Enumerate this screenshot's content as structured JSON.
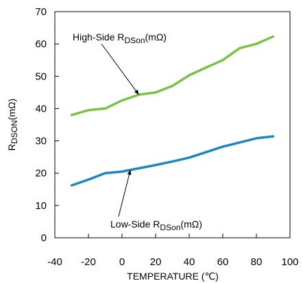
{
  "chart_data": {
    "type": "line",
    "xlabel": "TEMPERATURE (℃)",
    "ylabel": "RDSON(mΩ)",
    "xlim": [
      -40,
      100
    ],
    "ylim": [
      0,
      70
    ],
    "x_ticks": [
      "-40",
      "-20",
      "0",
      "20",
      "40",
      "60",
      "80",
      "100"
    ],
    "y_ticks": [
      "0",
      "10",
      "20",
      "30",
      "40",
      "50",
      "60",
      "70"
    ],
    "grid": false,
    "series": [
      {
        "name": "High-Side RDSon(mΩ)",
        "color": "#7cc242",
        "x": [
          -30,
          -20,
          -10,
          0,
          10,
          20,
          30,
          40,
          50,
          60,
          70,
          80,
          90
        ],
        "y": [
          38,
          39.5,
          40,
          42.5,
          44.3,
          45,
          47,
          50.3,
          52.7,
          55,
          58.7,
          60,
          62.3
        ]
      },
      {
        "name": "Low-Side RDSon(mΩ)",
        "color": "#1a88c0",
        "x": [
          -30,
          -20,
          -10,
          0,
          10,
          20,
          30,
          40,
          50,
          60,
          70,
          80,
          90
        ],
        "y": [
          16.2,
          18,
          20,
          20.5,
          21.5,
          22.5,
          23.6,
          24.8,
          26.5,
          28.2,
          29.5,
          30.8,
          31.4
        ]
      }
    ],
    "annotations": [
      {
        "series": 0,
        "label_main": "High-Side R",
        "label_sub": "DSon",
        "label_unit": "(mΩ)",
        "points_to": [
          10,
          44.3
        ]
      },
      {
        "series": 1,
        "label_main": "Low-Side R",
        "label_sub": "DSon",
        "label_unit": "(mΩ)",
        "points_to": [
          5,
          21
        ]
      }
    ],
    "ylabel_parts": {
      "main": "R",
      "sub": "DSON",
      "unit": "(mΩ)"
    }
  }
}
